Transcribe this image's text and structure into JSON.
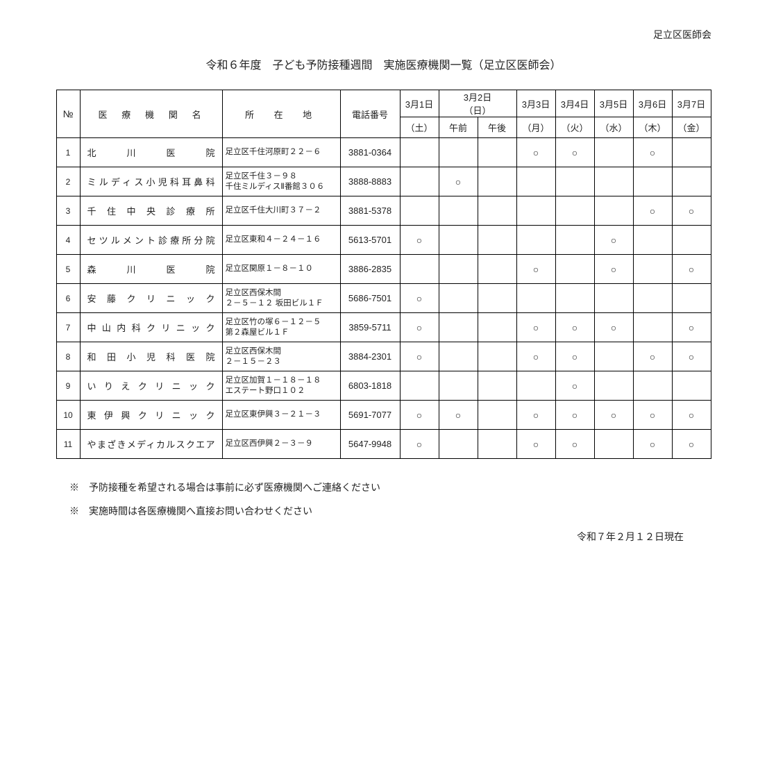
{
  "org_name": "足立区医師会",
  "title": "令和６年度　子ども予防接種週間　実施医療機関一覧（足立区医師会）",
  "header": {
    "no": "№",
    "name": "医　療　機　関　名",
    "addr": "所　在　地",
    "tel": "電話番号",
    "day1_top": "3月1日",
    "day1_bot": "（土）",
    "day2_top": "3月2日\n（日）",
    "day2_am": "午前",
    "day2_pm": "午後",
    "day3_top": "3月3日",
    "day3_bot": "（月）",
    "day4_top": "3月4日",
    "day4_bot": "（火）",
    "day5_top": "3月5日",
    "day5_bot": "（水）",
    "day6_top": "3月6日",
    "day6_bot": "（木）",
    "day7_top": "3月7日",
    "day7_bot": "（金）"
  },
  "mark": "○",
  "rows": [
    {
      "no": "1",
      "name": "北川医院",
      "addr": "足立区千住河原町２２－６",
      "tel": "3881-0364",
      "d": [
        "",
        "",
        "",
        "○",
        "○",
        "",
        "○",
        ""
      ]
    },
    {
      "no": "2",
      "name": "ミルディス小児科耳鼻科",
      "addr": "足立区千住３－９８\n千住ミルディスⅡ番館３０６",
      "tel": "3888-8883",
      "d": [
        "",
        "○",
        "",
        "",
        "",
        "",
        "",
        ""
      ]
    },
    {
      "no": "3",
      "name": "千住中央診療所",
      "addr": "足立区千住大川町３７－２",
      "tel": "3881-5378",
      "d": [
        "",
        "",
        "",
        "",
        "",
        "",
        "○",
        "○"
      ]
    },
    {
      "no": "4",
      "name": "セツルメント診療所分院",
      "addr": "足立区東和４－２４－１６",
      "tel": "5613-5701",
      "d": [
        "○",
        "",
        "",
        "",
        "",
        "○",
        "",
        ""
      ]
    },
    {
      "no": "5",
      "name": "森川医院",
      "addr": "足立区関原１－８－１０",
      "tel": "3886-2835",
      "d": [
        "",
        "",
        "",
        "○",
        "",
        "○",
        "",
        "○"
      ]
    },
    {
      "no": "6",
      "name": "安藤クリニック",
      "addr": "足立区西保木間\n２－５－１２ 坂田ビル１Ｆ",
      "tel": "5686-7501",
      "d": [
        "○",
        "",
        "",
        "",
        "",
        "",
        "",
        ""
      ]
    },
    {
      "no": "7",
      "name": "中山内科クリニック",
      "addr": "足立区竹の塚６－１２－５\n第２森屋ビル１Ｆ",
      "tel": "3859-5711",
      "d": [
        "○",
        "",
        "",
        "○",
        "○",
        "○",
        "",
        "○"
      ]
    },
    {
      "no": "8",
      "name": "和田小児科医院",
      "addr": "足立区西保木間\n２－１５－２３",
      "tel": "3884-2301",
      "d": [
        "○",
        "",
        "",
        "○",
        "○",
        "",
        "○",
        "○"
      ]
    },
    {
      "no": "9",
      "name": "いりえクリニック",
      "addr": "足立区加賀１－１８－１８\nエステート野口１０２",
      "tel": "6803-1818",
      "d": [
        "",
        "",
        "",
        "",
        "○",
        "",
        "",
        ""
      ]
    },
    {
      "no": "10",
      "name": "東伊興クリニック",
      "addr": "足立区東伊興３－２１－３",
      "tel": "5691-7077",
      "d": [
        "○",
        "○",
        "",
        "○",
        "○",
        "○",
        "○",
        "○"
      ]
    },
    {
      "no": "11",
      "name": "やまざきメディカルスクエア",
      "addr": "足立区西伊興２－３－９",
      "tel": "5647-9948",
      "d": [
        "○",
        "",
        "",
        "○",
        "○",
        "",
        "○",
        "○"
      ]
    }
  ],
  "notes": {
    "n1": "※　予防接種を希望される場合は事前に必ず医療機関へご連絡ください",
    "n2": "※　実施時間は各医療機関へ直接お問い合わせください"
  },
  "footer_date": "令和７年２月１２日現在"
}
